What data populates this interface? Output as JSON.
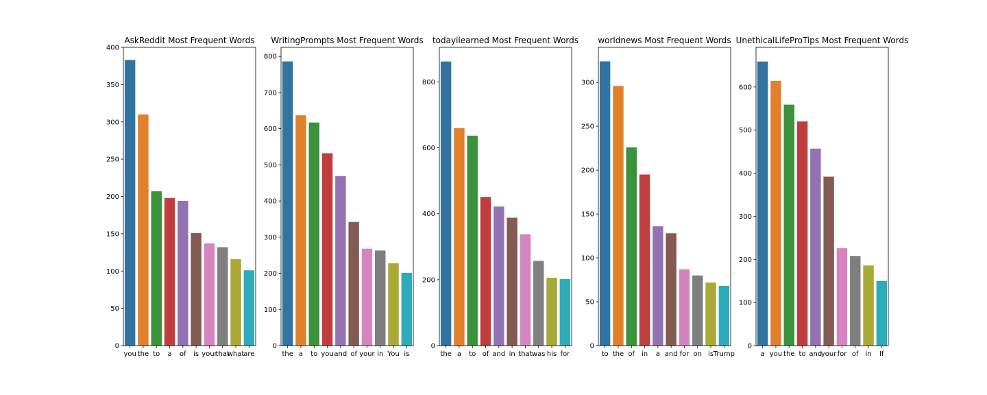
{
  "palette": [
    "#3274a1",
    "#e1812c",
    "#3a923a",
    "#c03d3e",
    "#9372b2",
    "#845b53",
    "#d684bd",
    "#7f7f7f",
    "#a9aa35",
    "#2eabb8"
  ],
  "chart_data": [
    {
      "type": "bar",
      "title": "AskReddit Most Frequent Words",
      "categories": [
        "you",
        "the",
        "to",
        "a",
        "of",
        "is",
        "your",
        "that",
        "what",
        "are"
      ],
      "values": [
        383,
        310,
        207,
        198,
        194,
        151,
        137,
        132,
        116,
        101
      ],
      "ylim": [
        0,
        400
      ],
      "yticks": [
        0,
        50,
        100,
        150,
        200,
        250,
        300,
        350,
        400
      ],
      "xlabel": "",
      "ylabel": ""
    },
    {
      "type": "bar",
      "title": "WritingPrompts Most Frequent Words",
      "categories": [
        "the",
        "a",
        "to",
        "you",
        "and",
        "of",
        "your",
        "in",
        "You",
        "is"
      ],
      "values": [
        786,
        637,
        617,
        532,
        469,
        342,
        268,
        263,
        228,
        201
      ],
      "ylim": [
        0,
        825
      ],
      "yticks": [
        0,
        100,
        200,
        300,
        400,
        500,
        600,
        700,
        800
      ],
      "xlabel": "",
      "ylabel": ""
    },
    {
      "type": "bar",
      "title": "todayilearned Most Frequent Words",
      "categories": [
        "the",
        "a",
        "to",
        "of",
        "and",
        "in",
        "that",
        "was",
        "his",
        "for"
      ],
      "values": [
        862,
        660,
        637,
        451,
        422,
        388,
        338,
        257,
        206,
        202
      ],
      "ylim": [
        0,
        905
      ],
      "yticks": [
        0,
        200,
        400,
        600,
        800
      ],
      "xlabel": "",
      "ylabel": ""
    },
    {
      "type": "bar",
      "title": "worldnews Most Frequent Words",
      "categories": [
        "to",
        "the",
        "of",
        "in",
        "a",
        "and",
        "for",
        "on",
        "is",
        "Trump"
      ],
      "values": [
        324,
        296,
        226,
        195,
        136,
        128,
        87,
        80,
        72,
        68
      ],
      "ylim": [
        0,
        340
      ],
      "yticks": [
        0,
        50,
        100,
        150,
        200,
        250,
        300
      ],
      "xlabel": "",
      "ylabel": ""
    },
    {
      "type": "bar",
      "title": "UnethicalLifeProTips Most Frequent Words",
      "categories": [
        "a",
        "you",
        "the",
        "to",
        "and",
        "your",
        "for",
        "of",
        "in",
        "If"
      ],
      "values": [
        659,
        614,
        559,
        520,
        457,
        392,
        226,
        208,
        186,
        150
      ],
      "ylim": [
        0,
        692
      ],
      "yticks": [
        0,
        100,
        200,
        300,
        400,
        500,
        600
      ],
      "xlabel": "",
      "ylabel": ""
    }
  ]
}
